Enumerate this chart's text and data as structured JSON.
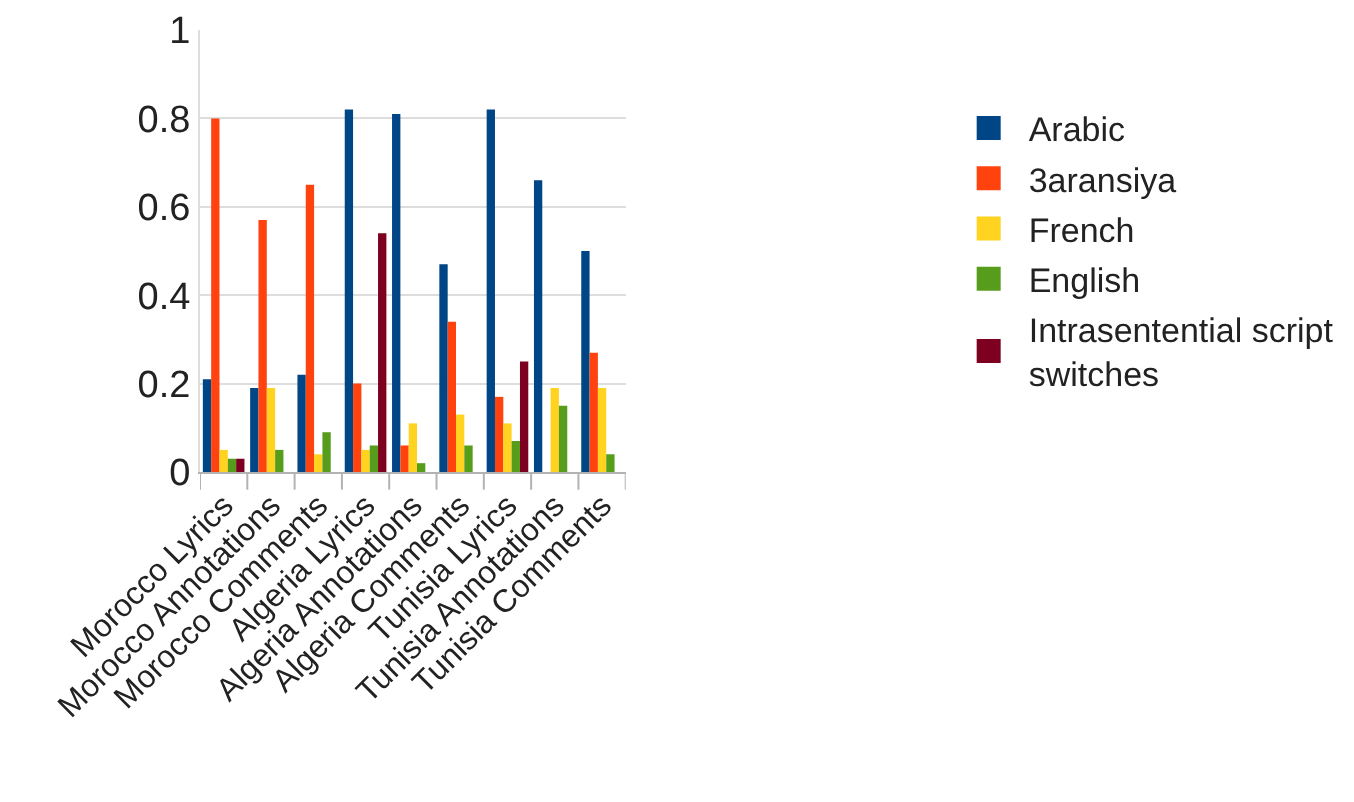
{
  "chart_data": {
    "type": "bar",
    "categories": [
      "Morocco Lyrics",
      "Morocco Annotations",
      "Morocco Comments",
      "Algeria Lyrics",
      "Algeria Annotations",
      "Algeria Comments",
      "Tunisia Lyrics",
      "Tunisia Annotations",
      "Tunisia Comments"
    ],
    "series": [
      {
        "name": "Arabic",
        "color": "#004586",
        "values": [
          0.21,
          0.19,
          0.22,
          0.82,
          0.81,
          0.47,
          0.82,
          0.66,
          0.5
        ]
      },
      {
        "name": "3aransiya",
        "color": "#ff420e",
        "values": [
          0.8,
          0.57,
          0.65,
          0.2,
          0.06,
          0.34,
          0.17,
          null,
          0.27
        ]
      },
      {
        "name": "French",
        "color": "#ffd320",
        "values": [
          0.05,
          0.19,
          0.04,
          0.05,
          0.11,
          0.13,
          0.11,
          0.19,
          0.19
        ]
      },
      {
        "name": "English",
        "color": "#579d1c",
        "values": [
          0.03,
          0.05,
          0.09,
          0.06,
          0.02,
          0.06,
          0.07,
          0.15,
          0.04
        ]
      },
      {
        "name": "Intrasentential script switches",
        "color": "#7e0021",
        "values": [
          0.03,
          null,
          null,
          0.54,
          null,
          null,
          0.25,
          null,
          null
        ]
      }
    ],
    "ylim": [
      0,
      1
    ],
    "yticks": [
      0,
      {
        "value": 0.2,
        "label": "0.2"
      },
      {
        "value": 0.4,
        "label": "0.4"
      },
      {
        "value": 0.6,
        "label": "0.6"
      },
      {
        "value": 0.8,
        "label": "0.8"
      },
      1
    ],
    "grid": "y",
    "legend": "right"
  }
}
